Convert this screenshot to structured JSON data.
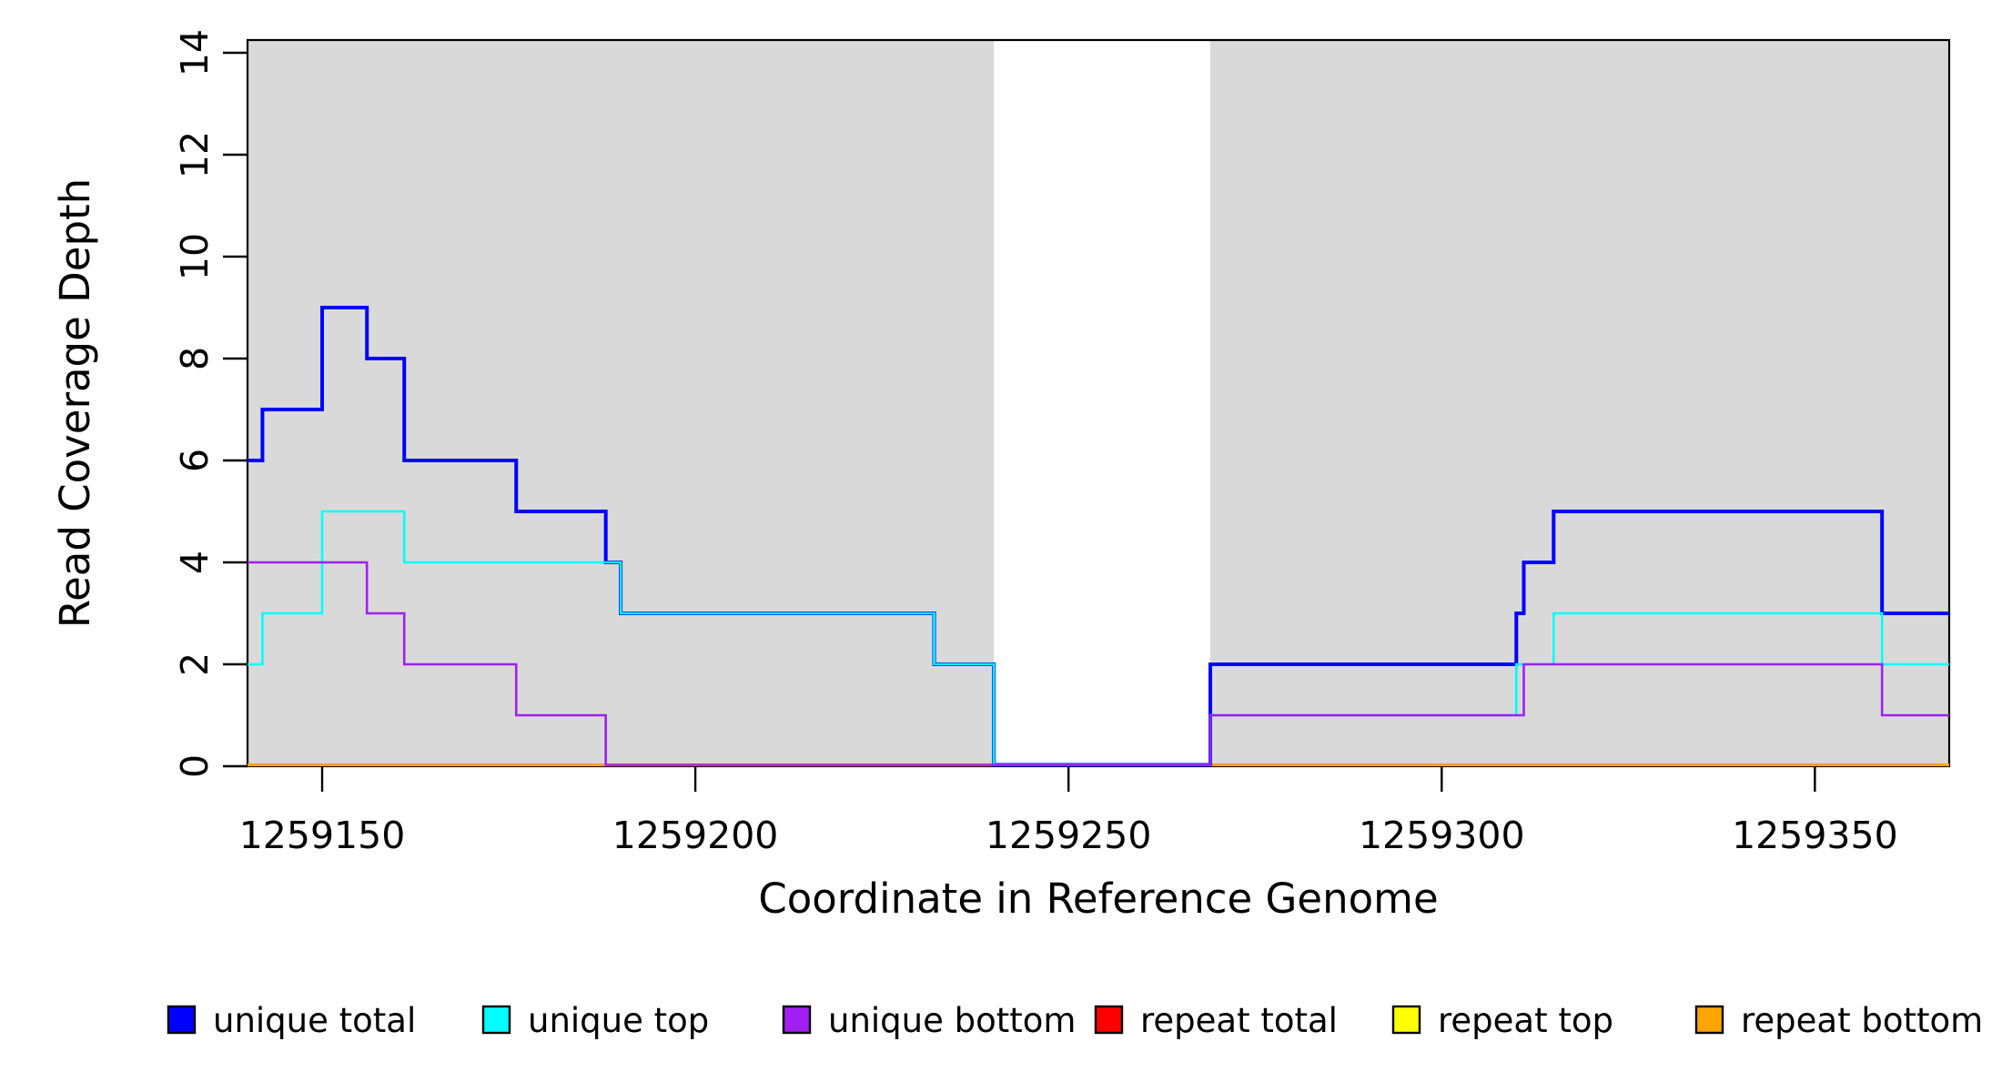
{
  "chart_data": {
    "type": "line",
    "subtype": "step-coverage",
    "title": "",
    "xlabel": "Coordinate in Reference Genome",
    "ylabel": "Read Coverage Depth",
    "xlim": [
      1259140,
      1259368
    ],
    "ylim": [
      0,
      14.3
    ],
    "xticks": [
      1259150,
      1259200,
      1259250,
      1259300,
      1259350
    ],
    "yticks": [
      0,
      2,
      4,
      6,
      8,
      10,
      12,
      14
    ],
    "grid": false,
    "panel_background": "#ffffff",
    "shaded_color": "#d9d9d9",
    "shaded_regions": [
      {
        "x0": 1259140,
        "x1": 1259240
      },
      {
        "x0": 1259269,
        "x1": 1259368
      }
    ],
    "white_gap_region": {
      "x0": 1259240,
      "x1": 1259269
    },
    "series": [
      {
        "name": "repeat total",
        "color": "#ff0000",
        "width": 2.6,
        "breakpoints": [
          [
            1259140,
            0
          ]
        ]
      },
      {
        "name": "repeat top",
        "color": "#ffff00",
        "width": 2.6,
        "breakpoints": [
          [
            1259140,
            0
          ]
        ]
      },
      {
        "name": "repeat bottom",
        "color": "#ffa500",
        "width": 3.2,
        "breakpoints": [
          [
            1259140,
            0
          ]
        ]
      },
      {
        "name": "unique total",
        "color": "#0000ff",
        "width": 4,
        "breakpoints": [
          [
            1259140,
            6
          ],
          [
            1259142,
            7
          ],
          [
            1259150,
            9
          ],
          [
            1259156,
            8
          ],
          [
            1259161,
            6
          ],
          [
            1259176,
            5
          ],
          [
            1259188,
            4
          ],
          [
            1259190,
            3
          ],
          [
            1259232,
            2
          ],
          [
            1259240,
            0
          ],
          [
            1259269,
            2
          ],
          [
            1259310,
            3
          ],
          [
            1259311,
            4
          ],
          [
            1259315,
            5
          ],
          [
            1259359,
            3
          ]
        ]
      },
      {
        "name": "unique top",
        "color": "#00ffff",
        "width": 2.6,
        "breakpoints": [
          [
            1259140,
            2
          ],
          [
            1259142,
            3
          ],
          [
            1259150,
            5
          ],
          [
            1259161,
            4
          ],
          [
            1259190,
            3
          ],
          [
            1259232,
            2
          ],
          [
            1259240,
            0
          ],
          [
            1259269,
            1
          ],
          [
            1259310,
            2
          ],
          [
            1259315,
            3
          ],
          [
            1259359,
            2
          ]
        ]
      },
      {
        "name": "unique bottom",
        "color": "#a020f0",
        "width": 2.6,
        "breakpoints": [
          [
            1259140,
            4
          ],
          [
            1259156,
            3
          ],
          [
            1259161,
            2
          ],
          [
            1259176,
            1
          ],
          [
            1259188,
            0
          ],
          [
            1259269,
            1
          ],
          [
            1259311,
            2
          ],
          [
            1259359,
            1
          ]
        ]
      }
    ],
    "legend": {
      "position": "bottom",
      "items": [
        {
          "label": "unique total",
          "color": "#0000ff"
        },
        {
          "label": "unique top",
          "color": "#00ffff"
        },
        {
          "label": "unique bottom",
          "color": "#a020f0"
        },
        {
          "label": "repeat total",
          "color": "#ff0000"
        },
        {
          "label": "repeat top",
          "color": "#ffff00"
        },
        {
          "label": "repeat bottom",
          "color": "#ffa500"
        }
      ]
    }
  }
}
